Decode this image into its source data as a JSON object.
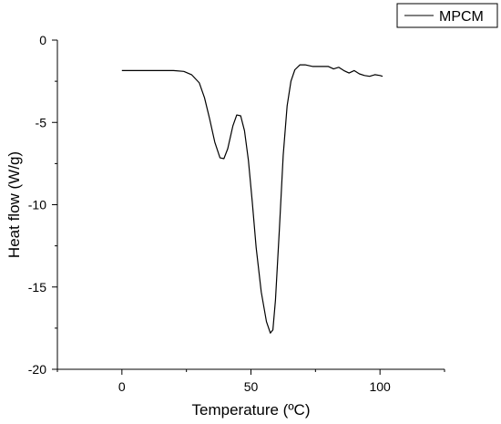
{
  "chart_data": {
    "type": "line",
    "xlabel": "Temperature (ºC)",
    "ylabel": "Heat flow (W/g)",
    "xlim": [
      -25,
      125
    ],
    "ylim": [
      -20,
      0
    ],
    "x_ticks": [
      0,
      50,
      100
    ],
    "y_ticks": [
      0,
      -5,
      -10,
      -15,
      -20
    ],
    "x_tick_labels": [
      "0",
      "50",
      "100"
    ],
    "y_tick_labels": [
      "0",
      "-5",
      "-10",
      "-15",
      "-20"
    ],
    "grid": false,
    "legend_position": "top-right",
    "series": [
      {
        "name": "MPCM",
        "color": "#000000",
        "points": [
          [
            0,
            -1.85
          ],
          [
            10,
            -1.85
          ],
          [
            20,
            -1.85
          ],
          [
            24,
            -1.9
          ],
          [
            27,
            -2.1
          ],
          [
            30,
            -2.6
          ],
          [
            32,
            -3.5
          ],
          [
            34,
            -4.8
          ],
          [
            36,
            -6.2
          ],
          [
            38,
            -7.15
          ],
          [
            39.5,
            -7.2
          ],
          [
            41,
            -6.6
          ],
          [
            43,
            -5.2
          ],
          [
            44.5,
            -4.55
          ],
          [
            46,
            -4.6
          ],
          [
            47.5,
            -5.5
          ],
          [
            49,
            -7.3
          ],
          [
            50.5,
            -9.8
          ],
          [
            52,
            -12.6
          ],
          [
            54,
            -15.3
          ],
          [
            56,
            -17.1
          ],
          [
            57.5,
            -17.8
          ],
          [
            58.5,
            -17.6
          ],
          [
            59.5,
            -15.8
          ],
          [
            61,
            -11.5
          ],
          [
            62.5,
            -7.0
          ],
          [
            64,
            -4.0
          ],
          [
            65.5,
            -2.5
          ],
          [
            67,
            -1.8
          ],
          [
            69,
            -1.5
          ],
          [
            71,
            -1.5
          ],
          [
            74,
            -1.6
          ],
          [
            77,
            -1.6
          ],
          [
            80,
            -1.6
          ],
          [
            82,
            -1.75
          ],
          [
            84,
            -1.65
          ],
          [
            86,
            -1.85
          ],
          [
            88,
            -2.0
          ],
          [
            90,
            -1.85
          ],
          [
            92,
            -2.05
          ],
          [
            94,
            -2.15
          ],
          [
            96,
            -2.2
          ],
          [
            98,
            -2.1
          ],
          [
            100,
            -2.15
          ],
          [
            101,
            -2.2
          ]
        ]
      }
    ]
  }
}
